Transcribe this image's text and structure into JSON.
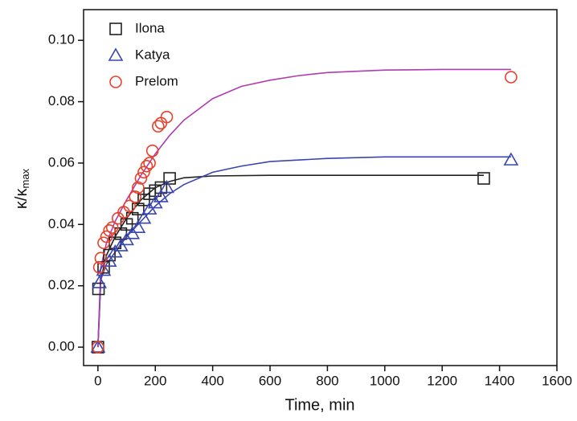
{
  "chart_data": {
    "type": "scatter",
    "xlabel": "Time, min",
    "ylabel": "κ/κ",
    "ylabel_sub": "max",
    "xlim": [
      -50,
      1600
    ],
    "ylim": [
      -0.006,
      0.11
    ],
    "xticks": [
      0,
      200,
      400,
      600,
      800,
      1000,
      1200,
      1400,
      1600
    ],
    "yticks": [
      {
        "value": 0,
        "label": "0.00"
      },
      {
        "value": 0.02,
        "label": "0.02"
      },
      {
        "value": 0.04,
        "label": "0.04"
      },
      {
        "value": 0.06,
        "label": "0.06"
      },
      {
        "value": 0.08,
        "label": "0.08"
      },
      {
        "value": 0.1,
        "label": "0.10"
      }
    ],
    "legend": "top-left",
    "series": [
      {
        "name": "Ilona",
        "color": "#222222",
        "marker": "square",
        "x": [
          0,
          2,
          20,
          40,
          60,
          80,
          100,
          120,
          140,
          160,
          180,
          200,
          220,
          250,
          1345
        ],
        "values": [
          0,
          0.019,
          0.026,
          0.03,
          0.034,
          0.037,
          0.04,
          0.042,
          0.045,
          0.048,
          0.05,
          0.051,
          0.052,
          0.055,
          0.055
        ]
      },
      {
        "name": "Katya",
        "color": "#3a46b0",
        "marker": "triangle",
        "x": [
          0,
          5,
          20,
          40,
          60,
          80,
          100,
          120,
          140,
          160,
          180,
          200,
          220,
          240,
          1440
        ],
        "values": [
          0,
          0.021,
          0.025,
          0.028,
          0.031,
          0.033,
          0.035,
          0.037,
          0.039,
          0.042,
          0.045,
          0.047,
          0.049,
          0.052,
          0.061
        ]
      },
      {
        "name": "Prelom",
        "color": "#e8402a",
        "marker": "circle",
        "x": [
          0,
          5,
          10,
          20,
          30,
          40,
          50,
          70,
          90,
          110,
          130,
          140,
          150,
          160,
          170,
          180,
          190,
          210,
          220,
          240,
          1440
        ],
        "values": [
          0,
          0.026,
          0.029,
          0.034,
          0.036,
          0.038,
          0.039,
          0.042,
          0.044,
          0.046,
          0.049,
          0.052,
          0.055,
          0.057,
          0.059,
          0.06,
          0.064,
          0.072,
          0.073,
          0.075,
          0.088
        ]
      }
    ],
    "fits": [
      {
        "color": "#222222",
        "x": [
          0,
          10,
          30,
          60,
          100,
          150,
          200,
          250,
          300,
          400,
          600,
          800,
          1000,
          1200,
          1345
        ],
        "values": [
          0,
          0.022,
          0.03,
          0.036,
          0.042,
          0.048,
          0.052,
          0.054,
          0.0552,
          0.0558,
          0.056,
          0.056,
          0.056,
          0.056,
          0.056
        ]
      },
      {
        "color": "#3a46b0",
        "x": [
          0,
          10,
          30,
          60,
          100,
          150,
          200,
          250,
          300,
          400,
          500,
          600,
          800,
          1000,
          1200,
          1440
        ],
        "values": [
          0,
          0.022,
          0.027,
          0.031,
          0.036,
          0.041,
          0.046,
          0.05,
          0.053,
          0.057,
          0.059,
          0.0605,
          0.0615,
          0.062,
          0.062,
          0.062
        ]
      },
      {
        "color": "#b03cb0",
        "x": [
          0,
          10,
          30,
          60,
          100,
          150,
          200,
          250,
          300,
          400,
          500,
          600,
          700,
          800,
          1000,
          1200,
          1440
        ],
        "values": [
          0,
          0.026,
          0.034,
          0.041,
          0.048,
          0.056,
          0.063,
          0.069,
          0.074,
          0.081,
          0.085,
          0.087,
          0.0885,
          0.0895,
          0.0903,
          0.0905,
          0.0905
        ]
      }
    ]
  }
}
